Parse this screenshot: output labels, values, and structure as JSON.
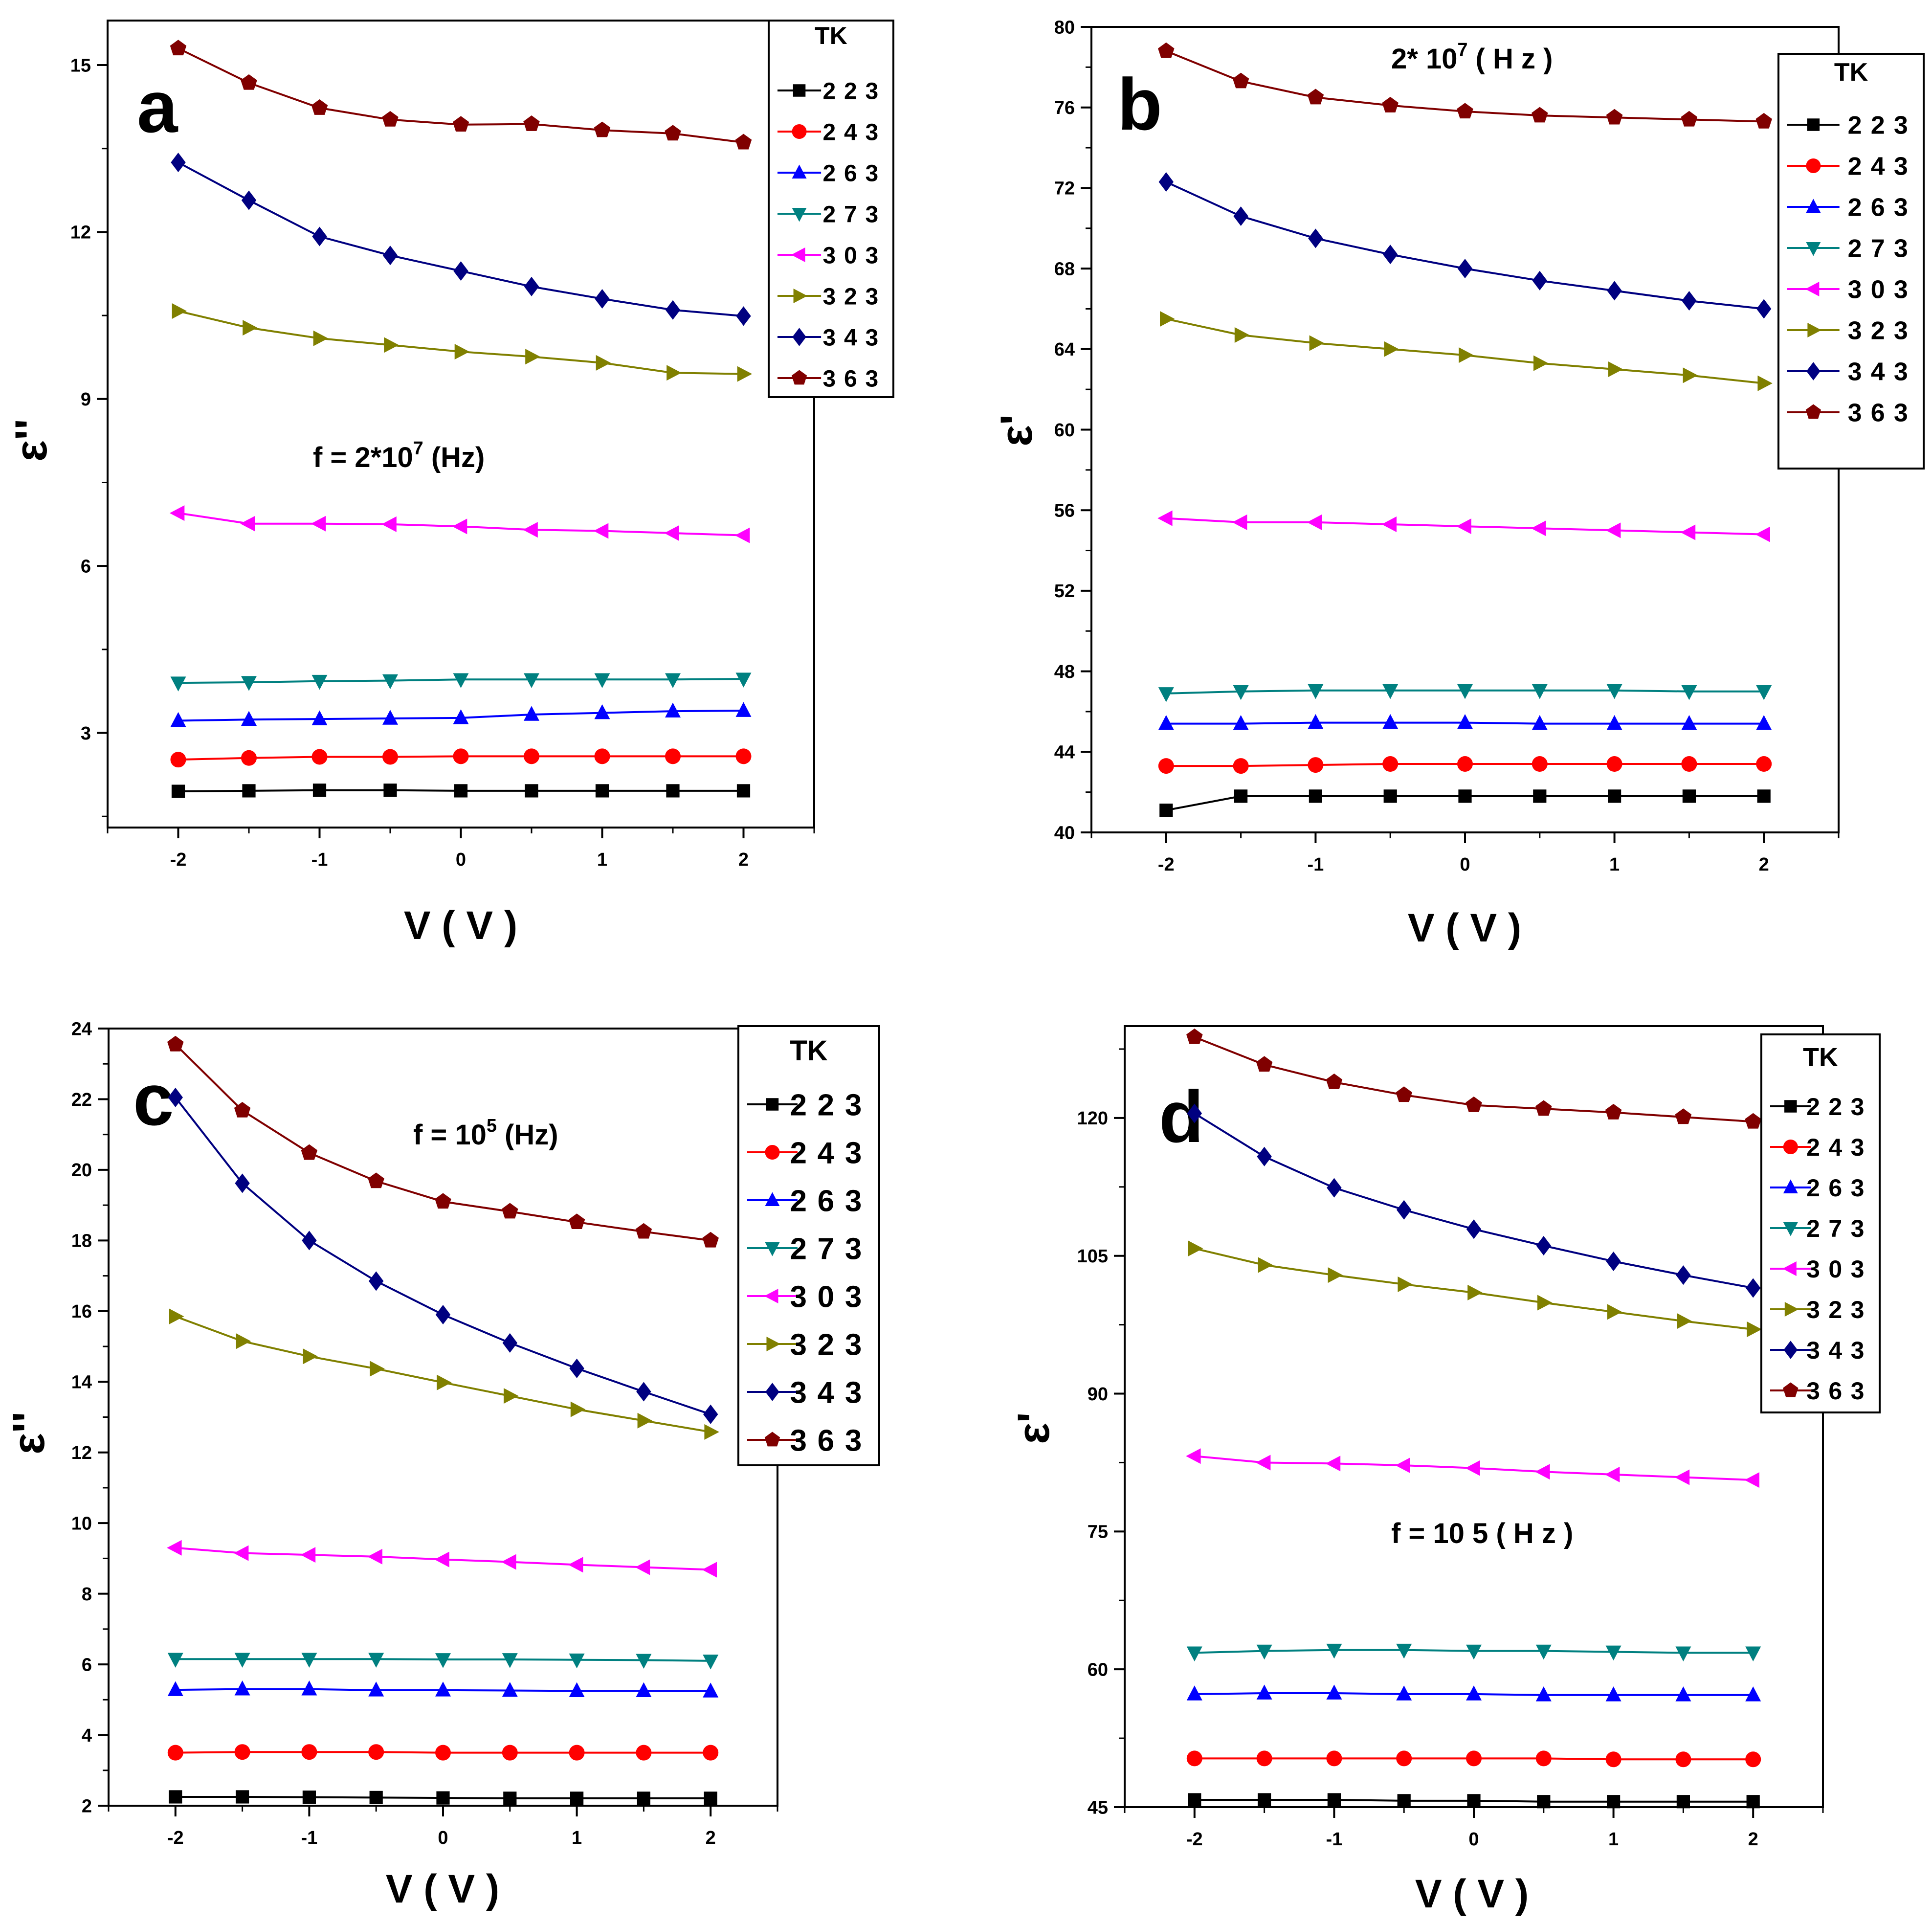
{
  "chart_data": [
    {
      "panel": "a",
      "type": "line",
      "xlabel": "V ( V )",
      "ylabel": "ε''",
      "annotation": {
        "prefix": "f = 2*10",
        "sup": "7",
        "suffix": " (Hz)"
      },
      "xlim": [
        -2.5,
        2.5
      ],
      "ylim": [
        1.3,
        15.8
      ],
      "xticks": [
        -2,
        -1,
        0,
        1,
        2
      ],
      "yticks": [
        3,
        6,
        9,
        12,
        15
      ],
      "x": [
        -2,
        -1.5,
        -1,
        -0.5,
        0,
        0.5,
        1,
        1.5,
        2
      ],
      "legend_title": "TK",
      "series": [
        {
          "name": "223",
          "values": [
            1.95,
            1.96,
            1.97,
            1.97,
            1.96,
            1.96,
            1.96,
            1.96,
            1.96
          ]
        },
        {
          "name": "243",
          "values": [
            2.52,
            2.55,
            2.57,
            2.57,
            2.58,
            2.58,
            2.58,
            2.58,
            2.58
          ]
        },
        {
          "name": "263",
          "values": [
            3.22,
            3.24,
            3.25,
            3.26,
            3.27,
            3.33,
            3.36,
            3.39,
            3.4
          ]
        },
        {
          "name": "273",
          "values": [
            3.9,
            3.91,
            3.93,
            3.94,
            3.96,
            3.96,
            3.96,
            3.96,
            3.97
          ]
        },
        {
          "name": "303",
          "values": [
            6.95,
            6.76,
            6.76,
            6.75,
            6.71,
            6.65,
            6.63,
            6.59,
            6.55
          ]
        },
        {
          "name": "323",
          "values": [
            10.58,
            10.28,
            10.09,
            9.97,
            9.85,
            9.76,
            9.65,
            9.47,
            9.45
          ]
        },
        {
          "name": "343",
          "values": [
            13.25,
            12.57,
            11.92,
            11.58,
            11.3,
            11.02,
            10.8,
            10.6,
            10.49
          ]
        },
        {
          "name": "363",
          "values": [
            15.3,
            14.68,
            14.23,
            14.02,
            13.93,
            13.94,
            13.83,
            13.77,
            13.61
          ]
        }
      ]
    },
    {
      "panel": "b",
      "type": "line",
      "xlabel": "V ( V )",
      "ylabel": "ε'",
      "annotation": {
        "prefix": "2* 10",
        "sup": "7",
        "suffix": " ( H z )"
      },
      "xlim": [
        -2.5,
        2.5
      ],
      "ylim": [
        40,
        80
      ],
      "xticks": [
        -2,
        -1,
        0,
        1,
        2
      ],
      "yticks": [
        40,
        44,
        48,
        52,
        56,
        60,
        64,
        68,
        72,
        76,
        80
      ],
      "x": [
        -2,
        -1.5,
        -1,
        -0.5,
        0,
        0.5,
        1,
        1.5,
        2
      ],
      "legend_title": "TK",
      "series": [
        {
          "name": "223",
          "values": [
            41.1,
            41.8,
            41.8,
            41.8,
            41.8,
            41.8,
            41.8,
            41.8,
            41.8
          ]
        },
        {
          "name": "243",
          "values": [
            43.3,
            43.3,
            43.35,
            43.4,
            43.4,
            43.4,
            43.4,
            43.4,
            43.4
          ]
        },
        {
          "name": "263",
          "values": [
            45.4,
            45.4,
            45.45,
            45.45,
            45.45,
            45.4,
            45.4,
            45.4,
            45.4
          ]
        },
        {
          "name": "273",
          "values": [
            46.9,
            47.0,
            47.05,
            47.05,
            47.05,
            47.05,
            47.05,
            47.0,
            47.0
          ]
        },
        {
          "name": "303",
          "values": [
            55.6,
            55.4,
            55.4,
            55.3,
            55.2,
            55.1,
            55.0,
            54.9,
            54.8
          ]
        },
        {
          "name": "323",
          "values": [
            65.5,
            64.7,
            64.3,
            64.0,
            63.7,
            63.3,
            63.0,
            62.7,
            62.3
          ]
        },
        {
          "name": "343",
          "values": [
            72.3,
            70.6,
            69.5,
            68.7,
            68.0,
            67.4,
            66.9,
            66.4,
            66.0
          ]
        },
        {
          "name": "363",
          "values": [
            78.8,
            77.3,
            76.5,
            76.1,
            75.8,
            75.6,
            75.5,
            75.4,
            75.3
          ]
        }
      ]
    },
    {
      "panel": "c",
      "type": "line",
      "xlabel": "V ( V )",
      "ylabel": "ε''",
      "annotation": {
        "prefix": "f = 10",
        "sup": "5",
        "suffix": " (Hz)"
      },
      "xlim": [
        -2.5,
        2.5
      ],
      "ylim": [
        2,
        24
      ],
      "xticks": [
        -2,
        -1,
        0,
        1,
        2
      ],
      "yticks": [
        2,
        4,
        6,
        8,
        10,
        12,
        14,
        16,
        18,
        20,
        22,
        24
      ],
      "x": [
        -2,
        -1.5,
        -1,
        -0.5,
        0,
        0.5,
        1,
        1.5,
        2
      ],
      "legend_title": "TK",
      "series": [
        {
          "name": "223",
          "values": [
            2.25,
            2.25,
            2.24,
            2.23,
            2.22,
            2.21,
            2.21,
            2.21,
            2.21
          ]
        },
        {
          "name": "243",
          "values": [
            3.5,
            3.52,
            3.52,
            3.52,
            3.5,
            3.5,
            3.5,
            3.5,
            3.5
          ]
        },
        {
          "name": "263",
          "values": [
            5.28,
            5.3,
            5.3,
            5.27,
            5.27,
            5.26,
            5.25,
            5.25,
            5.24
          ]
        },
        {
          "name": "273",
          "values": [
            6.15,
            6.15,
            6.15,
            6.15,
            6.14,
            6.14,
            6.13,
            6.12,
            6.1
          ]
        },
        {
          "name": "303",
          "values": [
            9.3,
            9.15,
            9.1,
            9.05,
            8.97,
            8.9,
            8.82,
            8.75,
            8.68
          ]
        },
        {
          "name": "323",
          "values": [
            15.85,
            15.15,
            14.72,
            14.37,
            13.98,
            13.6,
            13.22,
            12.9,
            12.58
          ]
        },
        {
          "name": "343",
          "values": [
            22.05,
            19.62,
            18.0,
            16.85,
            15.9,
            15.1,
            14.38,
            13.72,
            13.08
          ]
        },
        {
          "name": "363",
          "values": [
            23.55,
            21.68,
            20.48,
            19.68,
            19.1,
            18.82,
            18.52,
            18.25,
            18.0
          ]
        }
      ]
    },
    {
      "panel": "d",
      "type": "line",
      "xlabel": "V ( V )",
      "ylabel": "ε'",
      "annotation": {
        "prefix": "f = 10 5",
        "sup": "",
        "suffix": " ( H z )"
      },
      "xlim": [
        -2.5,
        2.5
      ],
      "ylim": [
        45,
        130
      ],
      "xticks": [
        -2,
        -1,
        0,
        1,
        2
      ],
      "yticks": [
        45,
        60,
        75,
        90,
        105,
        120
      ],
      "x": [
        -2,
        -1.5,
        -1,
        -0.5,
        0,
        0.5,
        1,
        1.5,
        2
      ],
      "legend_title": "TK",
      "series": [
        {
          "name": "223",
          "values": [
            45.8,
            45.8,
            45.8,
            45.7,
            45.7,
            45.6,
            45.6,
            45.6,
            45.6
          ]
        },
        {
          "name": "243",
          "values": [
            50.3,
            50.3,
            50.3,
            50.3,
            50.3,
            50.3,
            50.2,
            50.2,
            50.2
          ]
        },
        {
          "name": "263",
          "values": [
            57.3,
            57.4,
            57.4,
            57.3,
            57.3,
            57.2,
            57.2,
            57.2,
            57.2
          ]
        },
        {
          "name": "273",
          "values": [
            61.8,
            62.0,
            62.1,
            62.1,
            62.0,
            62.0,
            61.9,
            61.8,
            61.8
          ]
        },
        {
          "name": "303",
          "values": [
            83.2,
            82.5,
            82.4,
            82.2,
            81.9,
            81.5,
            81.2,
            80.9,
            80.6
          ]
        },
        {
          "name": "323",
          "values": [
            105.8,
            104.0,
            102.9,
            101.9,
            101.0,
            99.9,
            98.9,
            97.9,
            97.0
          ]
        },
        {
          "name": "343",
          "values": [
            120.5,
            115.8,
            112.4,
            110.0,
            107.9,
            106.1,
            104.4,
            102.9,
            101.5
          ]
        },
        {
          "name": "363",
          "values": [
            128.8,
            125.8,
            123.9,
            122.5,
            121.4,
            121.0,
            120.6,
            120.1,
            119.6
          ]
        }
      ]
    }
  ],
  "series_styles": [
    {
      "name": "223",
      "color": "#000000",
      "marker": "square"
    },
    {
      "name": "243",
      "color": "#ff0000",
      "marker": "circle"
    },
    {
      "name": "263",
      "color": "#0000ff",
      "marker": "triangle-up"
    },
    {
      "name": "273",
      "color": "#008080",
      "marker": "triangle-down"
    },
    {
      "name": "303",
      "color": "#ff00ff",
      "marker": "triangle-left"
    },
    {
      "name": "323",
      "color": "#808000",
      "marker": "triangle-right"
    },
    {
      "name": "343",
      "color": "#000080",
      "marker": "diamond"
    },
    {
      "name": "363",
      "color": "#800000",
      "marker": "pentagon"
    }
  ]
}
